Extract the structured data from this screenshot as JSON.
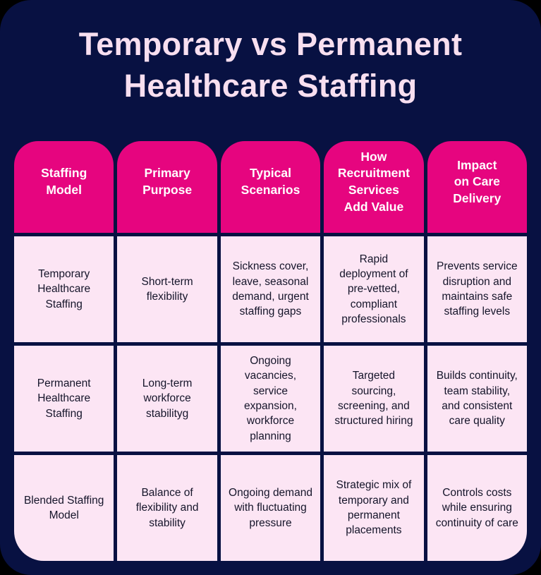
{
  "chart_data": {
    "type": "table",
    "title": "Temporary vs Permanent Healthcare Staffing",
    "columns": [
      "Staffing Model",
      "Primary Purpose",
      "Typical Scenarios",
      "How Recruitment Services Add Value",
      "Impact on Care Delivery"
    ],
    "rows": [
      [
        "Temporary Healthcare Staffing",
        "Short-term flexibility",
        "Sickness cover, leave, seasonal demand, urgent staffing gaps",
        "Rapid deployment of pre-vetted, compliant professionals",
        "Prevents service disruption and maintains safe staffing levels"
      ],
      [
        "Permanent Healthcare Staffing",
        "Long-term workforce stabilityg",
        "Ongoing vacancies, service expansion, workforce planning",
        "Targeted sourcing, screening, and structured hiring",
        "Builds continuity, team stability, and consistent care quality"
      ],
      [
        "Blended Staffing Model",
        "Balance of flexibility and stability",
        "Ongoing demand with fluctuating pressure",
        "Strategic mix of temporary and permanent placements",
        "Controls costs while ensuring continuity of care"
      ]
    ],
    "layout": "5 header columns with rounded tops, 3 data rows, grid on (navy gaps)"
  },
  "display": {
    "headers": [
      "Staffing\nModel",
      "Primary\nPurpose",
      "Typical\nScenarios",
      "How\nRecruitment\nServices\nAdd Value",
      "Impact\non Care\nDelivery"
    ]
  },
  "colors": {
    "outer_background": "#000000",
    "card_background": "#081142",
    "header_fill": "#E6057F",
    "cell_fill": "#FCE5F4",
    "title_text": "#F8DFF0",
    "header_text": "#FFFFFF",
    "body_text": "#15152A"
  }
}
